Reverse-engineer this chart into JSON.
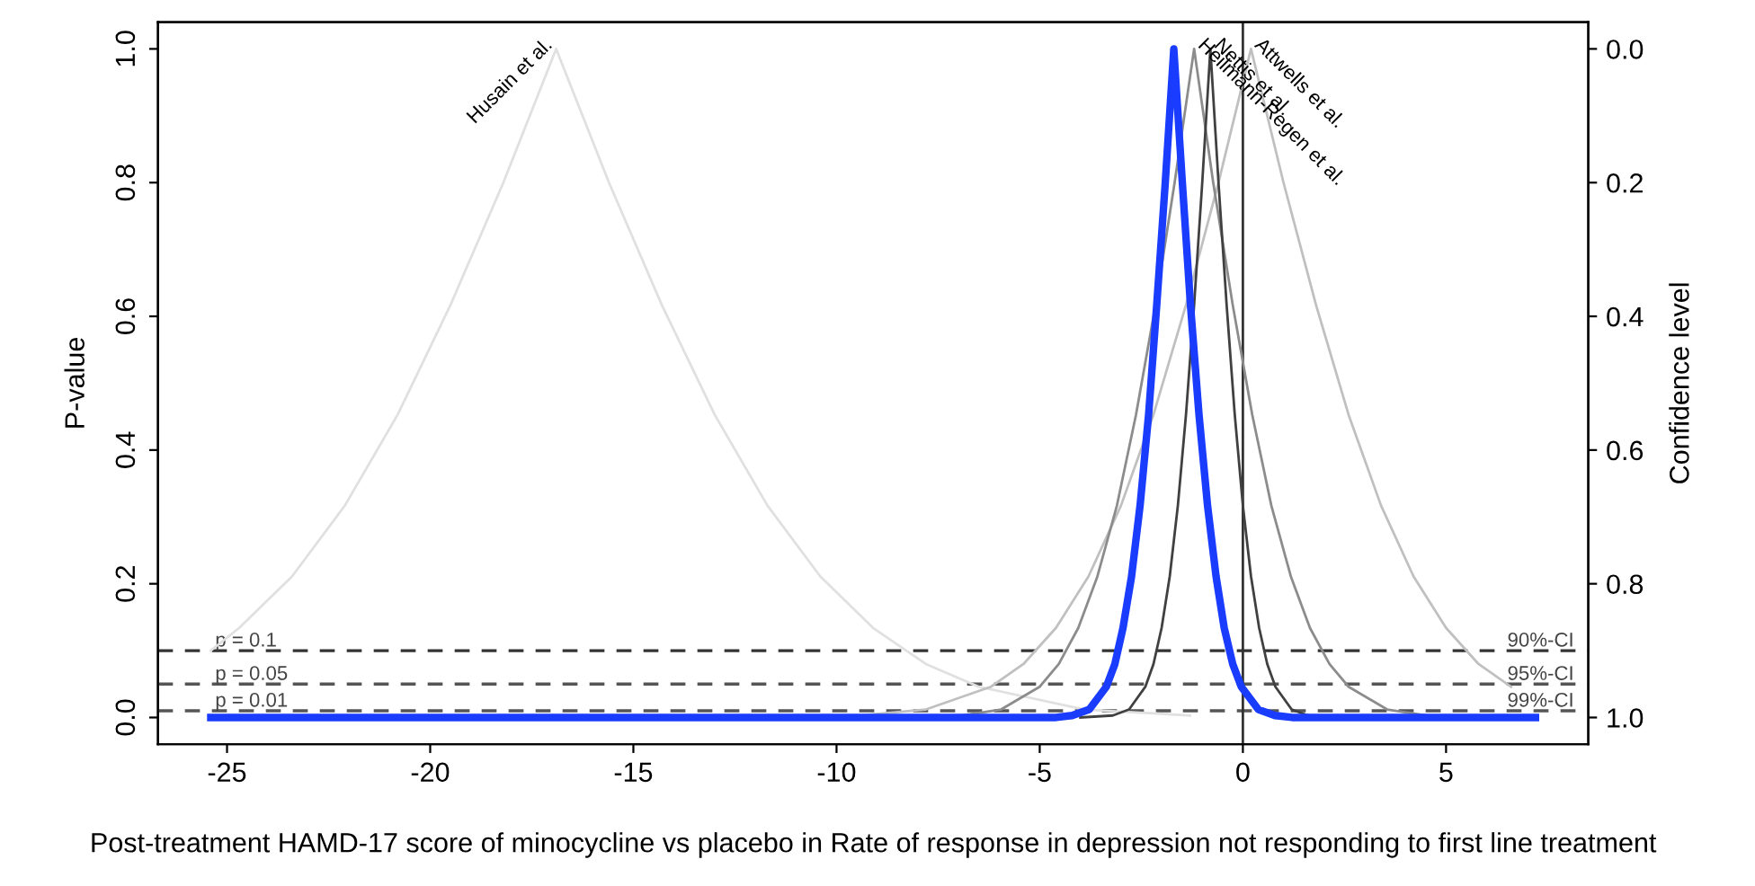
{
  "chart_data": {
    "type": "line",
    "xlabel": "Post-treatment HAMD-17 score of minocycline vs placebo in Rate of response in depression not responding to first line treatment",
    "ylabel": "P-value",
    "y2label": "Confidence level",
    "xlim": [
      -26.7,
      8.5
    ],
    "xticks": [
      -25,
      -20,
      -15,
      -10,
      -5,
      0,
      5
    ],
    "ylim": [
      -0.04,
      1.04
    ],
    "yticks": [
      {
        "value": 0,
        "label": "0.0"
      },
      {
        "value": 0.2,
        "label": "0.2"
      },
      {
        "value": 0.4,
        "label": "0.4"
      },
      {
        "value": 0.6,
        "label": "0.6"
      },
      {
        "value": 0.8,
        "label": "0.8"
      },
      {
        "value": 1,
        "label": "1.0"
      }
    ],
    "y2lim": [
      1.04,
      -0.04
    ],
    "y2ticks": [
      {
        "value": 0,
        "label": "0.0"
      },
      {
        "value": 0.2,
        "label": "0.2"
      },
      {
        "value": 0.4,
        "label": "0.4"
      },
      {
        "value": 0.6,
        "label": "0.6"
      },
      {
        "value": 0.8,
        "label": "0.8"
      },
      {
        "value": 1,
        "label": "1.0"
      }
    ],
    "grid": false,
    "marker": "none",
    "line_style": "solid",
    "series": [
      {
        "name": "Husain et al.",
        "color": "#e0e0e0",
        "x": [
          -25.4,
          -24.7,
          -23.4,
          -22.1,
          -20.8,
          -19.5,
          -18.2,
          -16.9,
          -15.6,
          -14.3,
          -13.0,
          -11.7,
          -10.4,
          -9.1,
          -7.8,
          -6.5,
          -3.9,
          -1.3
        ],
        "values": [
          0.1,
          0.134,
          0.211,
          0.317,
          0.453,
          0.617,
          0.8,
          1.0,
          0.8,
          0.617,
          0.453,
          0.317,
          0.211,
          0.134,
          0.08,
          0.046,
          0.012,
          0.003
        ]
      },
      {
        "name": "Attwells et al.",
        "color": "#c0c0c0",
        "x": [
          -12.6,
          -9.4,
          -7.8,
          -6.2,
          -5.4,
          -4.6,
          -3.8,
          -3.0,
          -2.2,
          -1.4,
          -0.6,
          0.2,
          1.0,
          1.8,
          2.6,
          3.4,
          4.2,
          5.0,
          5.8,
          6.6
        ],
        "values": [
          0.0,
          0.003,
          0.012,
          0.046,
          0.08,
          0.134,
          0.211,
          0.317,
          0.453,
          0.617,
          0.8,
          1.0,
          0.8,
          0.617,
          0.453,
          0.317,
          0.211,
          0.134,
          0.08,
          0.046
        ]
      },
      {
        "name": "Heilmann-Regen et al.",
        "color": "#8c8c8c",
        "x": [
          -8.8,
          -6.9,
          -5.95,
          -5.0,
          -4.53,
          -4.05,
          -3.58,
          -3.1,
          -2.63,
          -2.15,
          -1.68,
          -1.2,
          -0.73,
          -0.25,
          0.23,
          0.7,
          1.18,
          1.65,
          2.13,
          2.6,
          3.55,
          4.5,
          6.4
        ],
        "values": [
          0.0,
          0.003,
          0.012,
          0.046,
          0.08,
          0.134,
          0.211,
          0.317,
          0.453,
          0.617,
          0.8,
          1.0,
          0.8,
          0.617,
          0.453,
          0.317,
          0.211,
          0.134,
          0.08,
          0.046,
          0.012,
          0.003,
          0.0
        ]
      },
      {
        "name": "Nettis et al.",
        "color": "#404040",
        "x": [
          -4.0,
          -3.2,
          -2.8,
          -2.4,
          -2.2,
          -2.0,
          -1.8,
          -1.6,
          -1.4,
          -1.2,
          -1.0,
          -0.8,
          -0.6,
          -0.4,
          -0.2,
          0.0,
          0.2,
          0.4,
          0.6,
          0.8,
          1.2,
          1.6,
          2.4
        ],
        "values": [
          0.0,
          0.003,
          0.012,
          0.046,
          0.08,
          0.134,
          0.211,
          0.317,
          0.453,
          0.617,
          0.8,
          1.0,
          0.8,
          0.617,
          0.453,
          0.317,
          0.211,
          0.134,
          0.08,
          0.046,
          0.012,
          0.003,
          0.0
        ]
      },
      {
        "color": "#1a3cff",
        "x": [
          -25.4,
          -5.0,
          -4.6,
          -4.2,
          -3.78,
          -3.36,
          -3.15,
          -2.95,
          -2.74,
          -2.53,
          -2.32,
          -2.12,
          -1.91,
          -1.7,
          -1.49,
          -1.29,
          -1.08,
          -0.87,
          -0.66,
          -0.46,
          -0.25,
          -0.04,
          0.38,
          0.79,
          1.21,
          1.62,
          7.2
        ],
        "values": [
          0.0,
          0.0,
          0.0,
          0.003,
          0.012,
          0.046,
          0.08,
          0.134,
          0.211,
          0.317,
          0.453,
          0.617,
          0.8,
          1.0,
          0.8,
          0.617,
          0.453,
          0.317,
          0.211,
          0.134,
          0.08,
          0.046,
          0.012,
          0.003,
          0.0,
          0.0,
          0.0
        ]
      }
    ],
    "ref_lines": [
      {
        "axis": "y",
        "value": 0.1,
        "label": "p = 0.1",
        "color": "#333333",
        "line_style": "dashed"
      },
      {
        "axis": "y",
        "value": 0.05,
        "label": "p = 0.05",
        "color": "#555555",
        "line_style": "dashed"
      },
      {
        "axis": "y",
        "value": 0.01,
        "label": "p = 0.01",
        "color": "#555555",
        "line_style": "dashed"
      },
      {
        "axis": "x",
        "value": 0,
        "color": "#333333",
        "line_style": "solid"
      }
    ],
    "annotations": [
      "90%-CI",
      "95%-CI",
      "99%-CI"
    ]
  }
}
